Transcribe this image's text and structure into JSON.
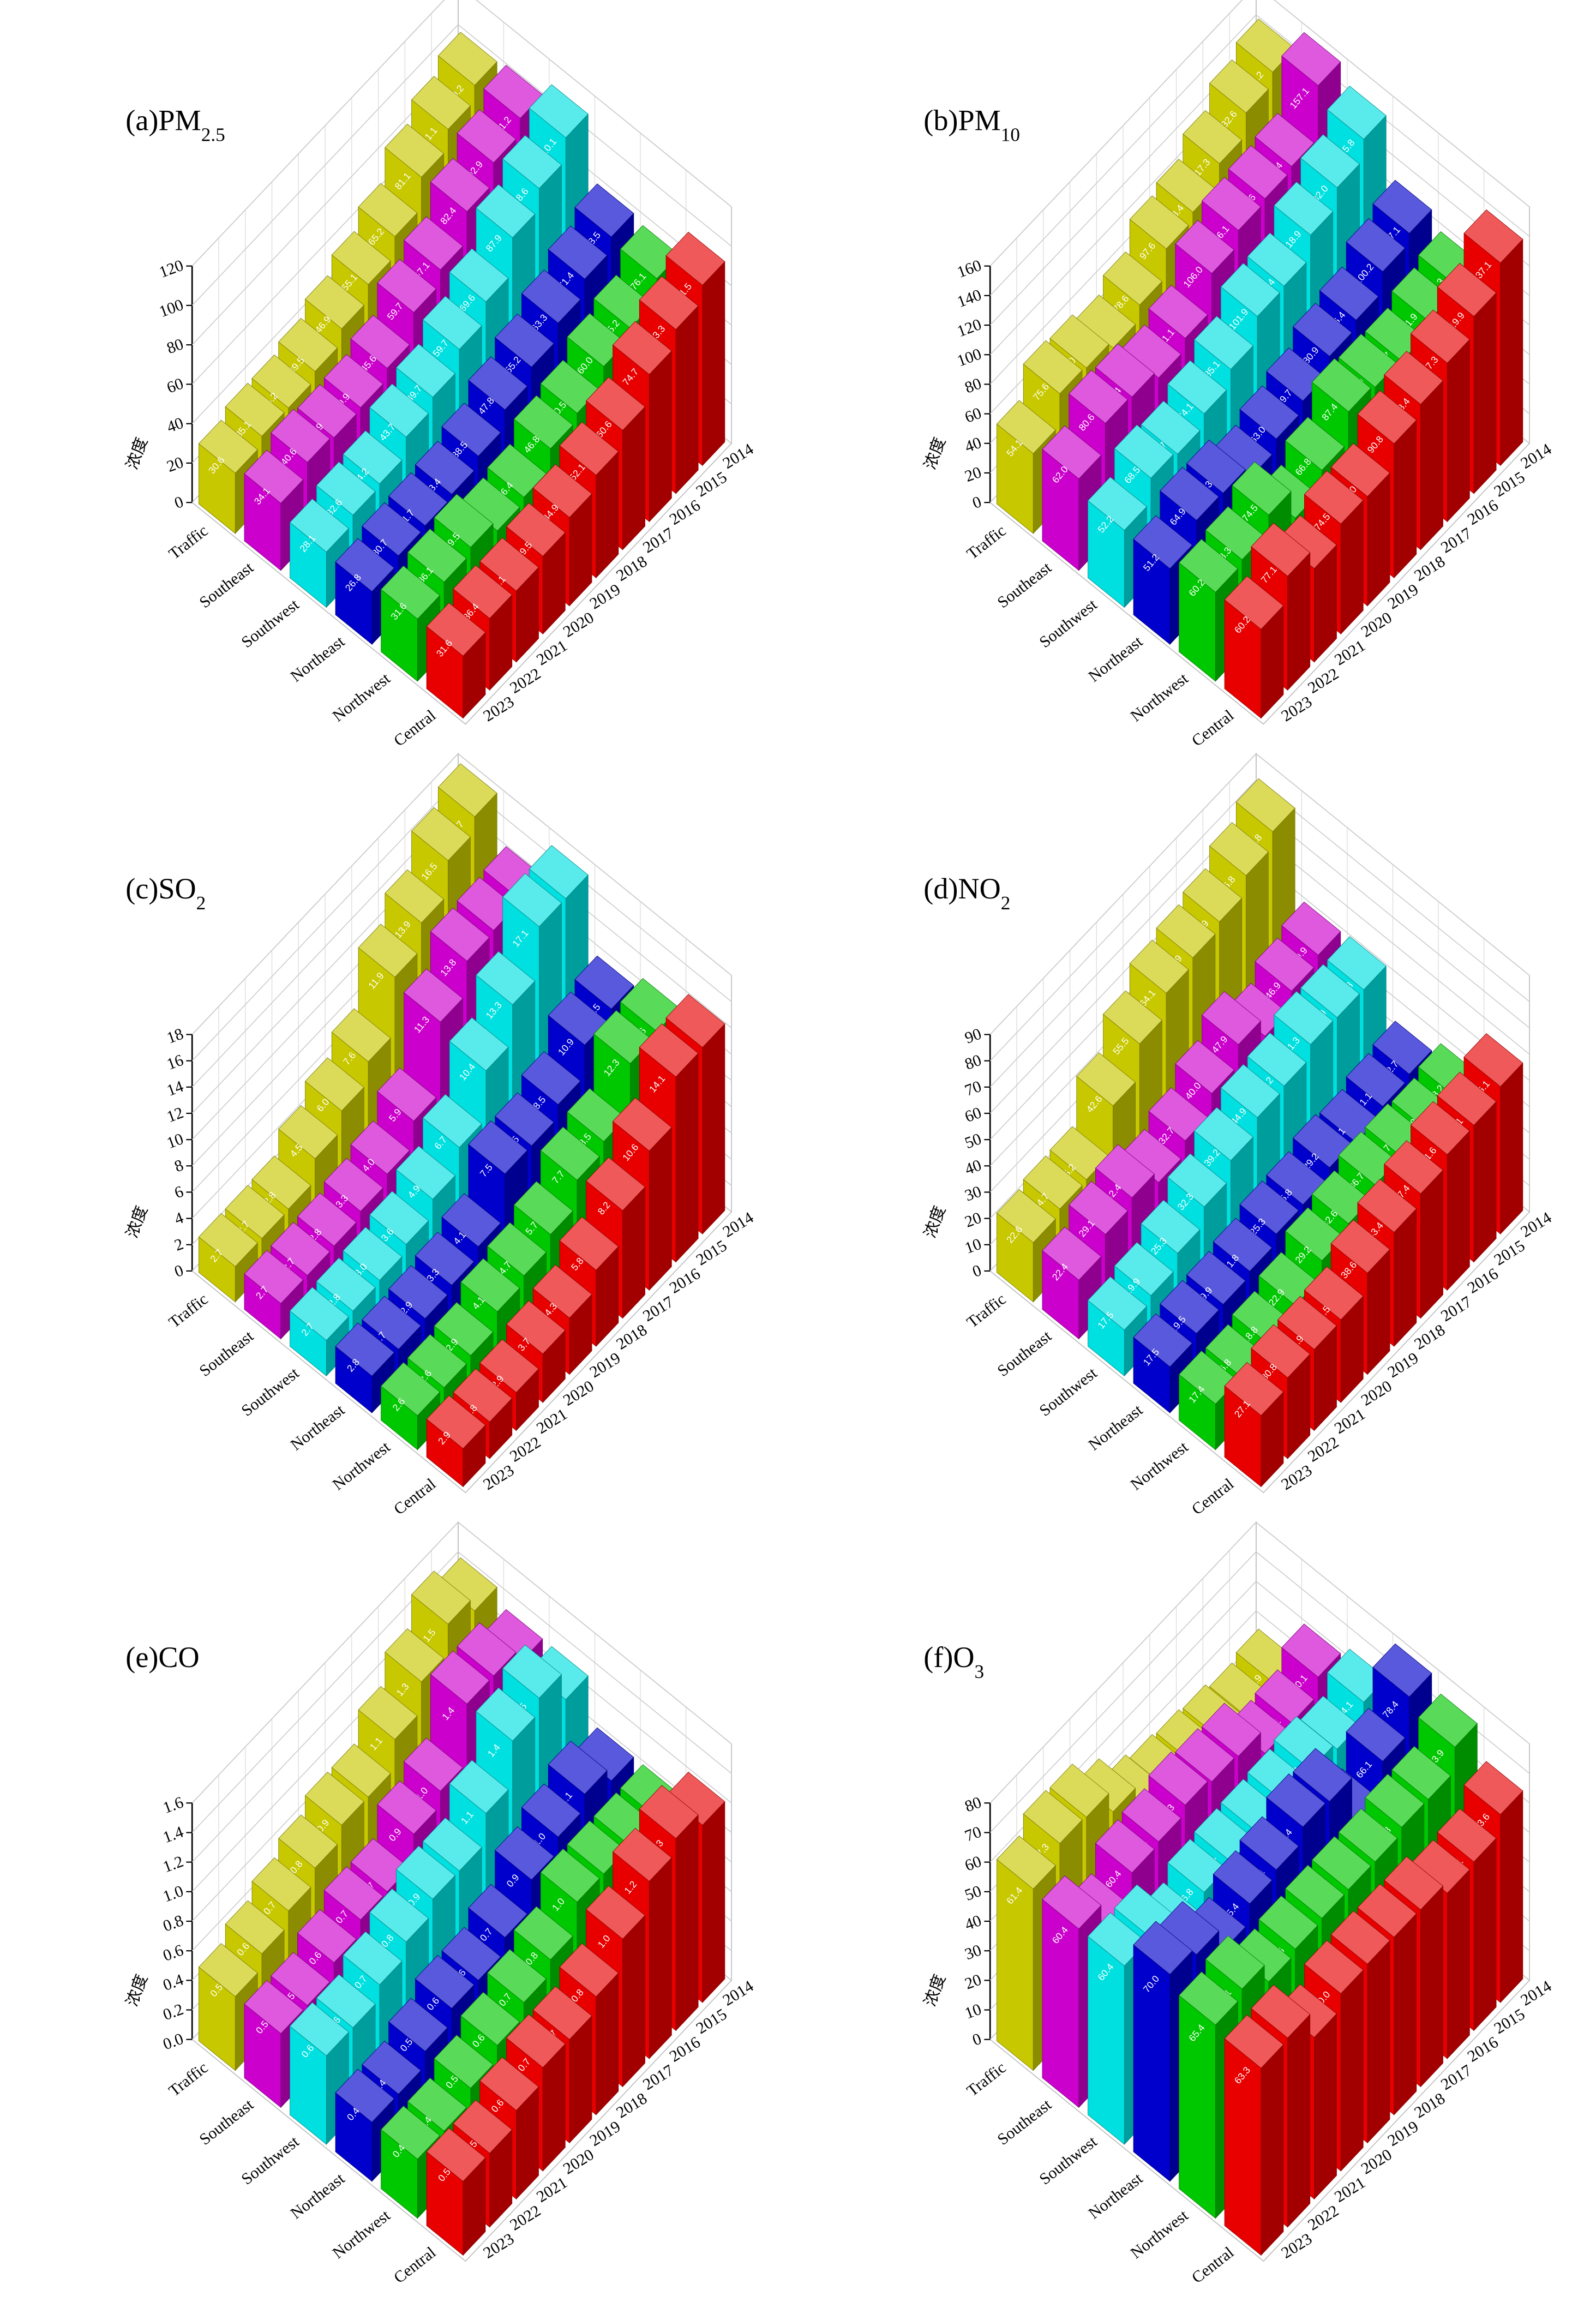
{
  "chart_data": [
    {
      "type": "bar3d",
      "title": "(a)PM",
      "title_sub": "2.5",
      "z_label": "浓度",
      "years": [
        2014,
        2015,
        2016,
        2017,
        2018,
        2019,
        2020,
        2021,
        2022,
        2023
      ],
      "ylim": [
        0,
        120
      ],
      "yticks": [
        0,
        20,
        40,
        60,
        80,
        100,
        120
      ],
      "series": [
        {
          "name": "Traffic",
          "color": "#c8c800",
          "values": [
            99.2,
            91.1,
            81.1,
            65.2,
            55.1,
            46.9,
            39.5,
            35.2,
            35.1,
            30.6
          ]
        },
        {
          "name": "Southeast",
          "color": "#cc00cc",
          "values": [
            101.2,
            92.9,
            82.4,
            67.1,
            59.7,
            45.6,
            39.9,
            38.9,
            40.6,
            34.1
          ]
        },
        {
          "name": "Southwest",
          "color": "#00e0e0",
          "values": [
            110.1,
            98.6,
            87.9,
            69.6,
            59.7,
            49.7,
            43.7,
            34.2,
            32.6,
            28.1
          ]
        },
        {
          "name": "Northeast",
          "color": "#0000cc",
          "values": [
            78.5,
            71.4,
            63.3,
            55.2,
            47.8,
            38.5,
            33.4,
            31.7,
            30.7,
            26.8
          ]
        },
        {
          "name": "Northwest",
          "color": "#00c800",
          "values": [
            76.1,
            65.2,
            60.0,
            50.5,
            46.8,
            36.4,
            33.6,
            39.5,
            36.1,
            31.6
          ],
          "value_labels": [
            "76.1",
            "65.2",
            "60.0",
            "50.5",
            "46.8",
            "36.4",
            "33.6",
            "39.5",
            "36.1",
            "31.6"
          ]
        },
        {
          "name": "Central",
          "color": "#e80000",
          "values": [
            91.5,
            83.3,
            74.7,
            60.6,
            52.1,
            44.9,
            39.5,
            36.1,
            36.4,
            31.6
          ]
        }
      ]
    },
    {
      "type": "bar3d",
      "title": "(b)PM",
      "title_sub": "10",
      "z_label": "浓度",
      "years": [
        2014,
        2015,
        2016,
        2017,
        2018,
        2019,
        2020,
        2021,
        2022,
        2023
      ],
      "ylim": [
        0,
        160
      ],
      "yticks": [
        0,
        20,
        40,
        60,
        80,
        100,
        120,
        140,
        160
      ],
      "series": [
        {
          "name": "Traffic",
          "color": "#c8c800",
          "values": [
            141.2,
            132.6,
            117.3,
            103.4,
            97.6,
            78.6,
            68.5,
            74.0,
            75.6,
            54.1
          ],
          "value_labels": [
            "141.2",
            "132.6",
            "117.3",
            "103.4",
            "97.6",
            "78.6",
            "68.5",
            "74.0",
            "75.6",
            "54.1"
          ]
        },
        {
          "name": "Southeast",
          "color": "#cc00cc",
          "values": [
            157.1,
            121.4,
            118.6,
            116.1,
            106.0,
            81.1,
            73.3,
            79.4,
            80.6,
            62.0
          ],
          "value_labels": [
            "157.1",
            "121.4",
            "118.6",
            "116.1",
            "106.0",
            "81.1",
            "73.3",
            "79.4",
            "80.6",
            "62.0"
          ]
        },
        {
          "name": "Southwest",
          "color": "#00e0e0",
          "values": [
            145.8,
            132.0,
            118.9,
            103.4,
            101.9,
            85.1,
            74.1,
            65.7,
            68.5,
            52.2
          ],
          "value_labels": [
            "145.8",
            "132.0",
            "118.9",
            "103.4",
            "101.9",
            "85.1",
            "74.1",
            "65.7",
            "68.5",
            "52.2"
          ]
        },
        {
          "name": "Northeast",
          "color": "#0000cc",
          "values": [
            107.1,
            100.2,
            86.4,
            80.9,
            69.7,
            63.0,
            55.4,
            64.3,
            64.9,
            51.2
          ],
          "value_labels": [
            "107.1",
            "100.2",
            "86.4",
            "80.9",
            "69.7",
            "63.0",
            "55.4",
            "64.3",
            "64.9",
            "51.2"
          ]
        },
        {
          "name": "Northwest",
          "color": "#00c800",
          "values": [
            97.3,
            91.9,
            83.7,
            85.0,
            87.4,
            66.8,
            53.4,
            74.5,
            63.3,
            60.2
          ],
          "value_labels": [
            "97.3",
            "91.9",
            "83.7",
            "85.0",
            "87.4",
            "66.8",
            "53.4",
            "74.5",
            "63.3",
            "60.2"
          ]
        },
        {
          "name": "Central",
          "color": "#e80000",
          "values": [
            137.1,
            119.9,
            107.3,
            98.4,
            90.8,
            74.0,
            74.5,
            63.3,
            77.1,
            60.2
          ],
          "value_labels": [
            "137.1",
            "119.9",
            "107.3",
            "98.4",
            "90.8",
            "74.0",
            "74.5",
            "63.3",
            "77.1",
            "60.2"
          ]
        }
      ]
    },
    {
      "type": "bar3d",
      "title": "(c)SO",
      "title_sub": "2",
      "z_label": "浓度",
      "years": [
        2014,
        2015,
        2016,
        2017,
        2018,
        2019,
        2020,
        2021,
        2022,
        2023
      ],
      "ylim": [
        0,
        18
      ],
      "yticks": [
        0,
        2,
        4,
        6,
        8,
        10,
        12,
        14,
        16,
        18
      ],
      "series": [
        {
          "name": "Traffic",
          "color": "#c8c800",
          "values": [
            17.7,
            16.5,
            13.9,
            11.9,
            7.6,
            6.0,
            4.5,
            2.8,
            2.7,
            2.7
          ],
          "value_labels": [
            "17.7",
            "16.5",
            "13.9",
            "11.9",
            "7.6",
            "6.0",
            "4.5",
            "2.8",
            "2.7",
            "2.7"
          ]
        },
        {
          "name": "Southeast",
          "color": "#cc00cc",
          "values": [
            14.2,
            14.0,
            13.8,
            11.3,
            5.9,
            4.0,
            3.3,
            2.8,
            2.7,
            2.7
          ],
          "value_labels": [
            "14.2",
            "14.0",
            "13.8",
            "11.3",
            "5.9",
            "4.0",
            "3.3",
            "2.8",
            "2.7",
            "2.7"
          ]
        },
        {
          "name": "Southwest",
          "color": "#00e0e0",
          "values": [
            17.1,
            17.1,
            13.3,
            10.4,
            6.7,
            4.9,
            3.6,
            3.0,
            2.8,
            2.7
          ],
          "value_labels": [
            "17.1",
            "17.1",
            "13.3",
            "10.4",
            "6.7",
            "4.9",
            "3.6",
            "3.0",
            "2.8",
            "2.7"
          ]
        },
        {
          "name": "Northeast",
          "color": "#0000cc",
          "values": [
            11.5,
            10.9,
            8.5,
            7.5,
            7.5,
            4.1,
            3.3,
            2.9,
            2.7,
            2.8
          ]
        },
        {
          "name": "Northwest",
          "color": "#00c800",
          "values": [
            12.6,
            12.3,
            8.5,
            7.7,
            5.7,
            4.7,
            4.1,
            2.9,
            2.6,
            2.6
          ]
        },
        {
          "name": "Central",
          "color": "#e80000",
          "values": [
            14.2,
            14.1,
            10.6,
            8.2,
            5.8,
            4.3,
            3.7,
            2.9,
            2.8,
            2.9
          ]
        }
      ]
    },
    {
      "type": "bar3d",
      "title": "(d)NO",
      "title_sub": "2",
      "z_label": "浓度",
      "years": [
        2014,
        2015,
        2016,
        2017,
        2018,
        2019,
        2020,
        2021,
        2022,
        2023
      ],
      "ylim": [
        0,
        90
      ],
      "yticks": [
        0,
        10,
        20,
        30,
        40,
        50,
        60,
        70,
        80,
        90
      ],
      "series": [
        {
          "name": "Traffic",
          "color": "#c8c800",
          "values": [
            82.8,
            76.8,
            69.9,
            66.9,
            64.1,
            55.5,
            42.6,
            25.2,
            24.7,
            22.6
          ]
        },
        {
          "name": "Southeast",
          "color": "#cc00cc",
          "values": [
            49.9,
            46.9,
            40.4,
            47.9,
            40.0,
            32.7,
            27.5,
            32.4,
            29.1,
            22.4
          ],
          "value_labels": [
            "49.9",
            "46.9",
            "40.4",
            "47.9",
            "40.0",
            "32.7",
            "27.5",
            "32.4",
            "29.1",
            "22.4"
          ]
        },
        {
          "name": "Southwest",
          "color": "#00e0e0",
          "values": [
            50.8,
            50.9,
            51.3,
            46.2,
            44.9,
            39.2,
            32.3,
            25.3,
            19.9,
            17.5
          ]
        },
        {
          "name": "Northeast",
          "color": "#0000cc",
          "values": [
            32.7,
            31.1,
            28.1,
            29.2,
            25.8,
            25.3,
            21.8,
            19.9,
            19.5,
            17.5
          ]
        },
        {
          "name": "Northwest",
          "color": "#00c800",
          "values": [
            38.2,
            35.8,
            36.7,
            36.7,
            32.6,
            29.2,
            22.9,
            18.8,
            16.8,
            17.4
          ]
        },
        {
          "name": "Central",
          "color": "#e80000",
          "values": [
            56.1,
            52.1,
            51.6,
            47.4,
            43.4,
            38.6,
            31.5,
            30.9,
            30.8,
            27.1
          ]
        }
      ]
    },
    {
      "type": "bar3d",
      "title": "(e)CO",
      "z_label": "浓度",
      "years": [
        2014,
        2015,
        2016,
        2017,
        2018,
        2019,
        2020,
        2021,
        2022,
        2023
      ],
      "ylim": [
        0,
        1.6
      ],
      "yticks": [
        {
          "value": 0,
          "label": "0.0"
        },
        0.2,
        0.4,
        0.6,
        0.8,
        {
          "value": 1,
          "label": "1.0"
        },
        1.2,
        1.4,
        1.6
      ],
      "series": [
        {
          "name": "Traffic",
          "color": "#c8c800",
          "values": [
            1.4,
            1.5,
            1.3,
            1.1,
            0.9,
            0.9,
            0.8,
            0.7,
            0.6,
            0.5
          ]
        },
        {
          "name": "Southeast",
          "color": "#cc00cc",
          "values": [
            1.3,
            1.4,
            1.4,
            1.0,
            0.9,
            0.7,
            0.7,
            0.6,
            0.5,
            0.5
          ],
          "value_labels": [
            "1.3",
            "1.4",
            "1.4",
            "1.0",
            "0.9",
            "0.7",
            "0.7",
            "0.6",
            "0.5",
            "0.5"
          ]
        },
        {
          "name": "Southwest",
          "color": "#00e0e0",
          "values": [
            1.3,
            1.5,
            1.4,
            1.1,
            0.9,
            0.9,
            0.8,
            0.7,
            0.6,
            0.6
          ]
        },
        {
          "name": "Northeast",
          "color": "#0000cc",
          "values": [
            1.0,
            1.1,
            1.0,
            0.9,
            0.7,
            0.6,
            0.6,
            0.5,
            0.4,
            0.4
          ],
          "value_labels": [
            "1.0",
            "1.1",
            "1.0",
            "0.9",
            "0.7",
            "0.6",
            "0.6",
            "0.5",
            "0.4",
            "0.4"
          ]
        },
        {
          "name": "Northwest",
          "color": "#00c800",
          "values": [
            1.0,
            1.0,
            1.0,
            1.0,
            0.8,
            0.7,
            0.6,
            0.5,
            0.4,
            0.4
          ],
          "value_labels": [
            "1.0",
            "1.0",
            "1.0",
            "1.0",
            "0.8",
            "0.7",
            "0.6",
            "0.5",
            "0.4",
            "0.4"
          ]
        },
        {
          "name": "Central",
          "color": "#e80000",
          "values": [
            1.2,
            1.3,
            1.2,
            1.0,
            0.8,
            0.7,
            0.7,
            0.6,
            0.5,
            0.5
          ],
          "value_labels": [
            "1.2",
            "1.3",
            "1.2",
            "1.0",
            "0.8",
            "0.7",
            "0.7",
            "0.6",
            "0.5",
            "0.5"
          ]
        }
      ]
    },
    {
      "type": "bar3d",
      "title": "(f)O",
      "title_sub": "3",
      "z_label": "浓度",
      "years": [
        2014,
        2015,
        2016,
        2017,
        2018,
        2019,
        2020,
        2021,
        2022,
        2023
      ],
      "ylim": [
        0,
        80
      ],
      "yticks": [
        0,
        10,
        20,
        30,
        40,
        50,
        60,
        70,
        80
      ],
      "series": [
        {
          "name": "Traffic",
          "color": "#c8c800",
          "values": [
            45.9,
            43.9,
            46.0,
            47.1,
            48.2,
            50.8,
            59.0,
            66.7,
            67.3,
            61.4
          ],
          "value_labels": [
            "45.9",
            "43.9",
            "46.0",
            "47.1",
            "48.2",
            "50.8",
            "59.0",
            "66.7",
            "67.3",
            "61.4"
          ]
        },
        {
          "name": "Southeast",
          "color": "#cc00cc",
          "values": [
            60.1,
            54.1,
            53.3,
            61.8,
            62.7,
            64.3,
            61.4,
            60.4,
            51.6,
            60.4
          ]
        },
        {
          "name": "Southwest",
          "color": "#00e0e0",
          "values": [
            64.1,
            57.7,
            60.3,
            58.8,
            58.1,
            57.7,
            56.8,
            51.6,
            60.4,
            60.4
          ]
        },
        {
          "name": "Northeast",
          "color": "#0000cc",
          "values": [
            78.4,
            66.1,
            55.1,
            71.5,
            72.4,
            67.4,
            65.4,
            59.1,
            67.2,
            70.0
          ],
          "value_labels": [
            "78.4",
            "66.1",
            "55.1",
            "71.5",
            "72.4",
            "67.4",
            "65.4",
            "59.1",
            "67.2",
            "70.0"
          ]
        },
        {
          "name": "Northwest",
          "color": "#00c800",
          "values": [
            73.9,
            65.7,
            65.8,
            63.6,
            63.7,
            63.5,
            62.6,
            61.0,
            68.1,
            65.4
          ],
          "value_labels": [
            "73.9",
            "65.7",
            "65.8",
            "63.6",
            "63.7",
            "63.5",
            "62.6",
            "61.0",
            "68.1",
            "65.4"
          ]
        },
        {
          "name": "Central",
          "color": "#e80000",
          "values": [
            63.6,
            57.1,
            56.0,
            59.9,
            60.1,
            60.5,
            60.0,
            54.7,
            64.0,
            63.3
          ],
          "value_labels": [
            "63.6",
            "57.1",
            "56.0",
            "59.9",
            "60.1",
            "60.5",
            "60.0",
            "54.7",
            "64.0",
            "63.3"
          ]
        }
      ]
    }
  ]
}
